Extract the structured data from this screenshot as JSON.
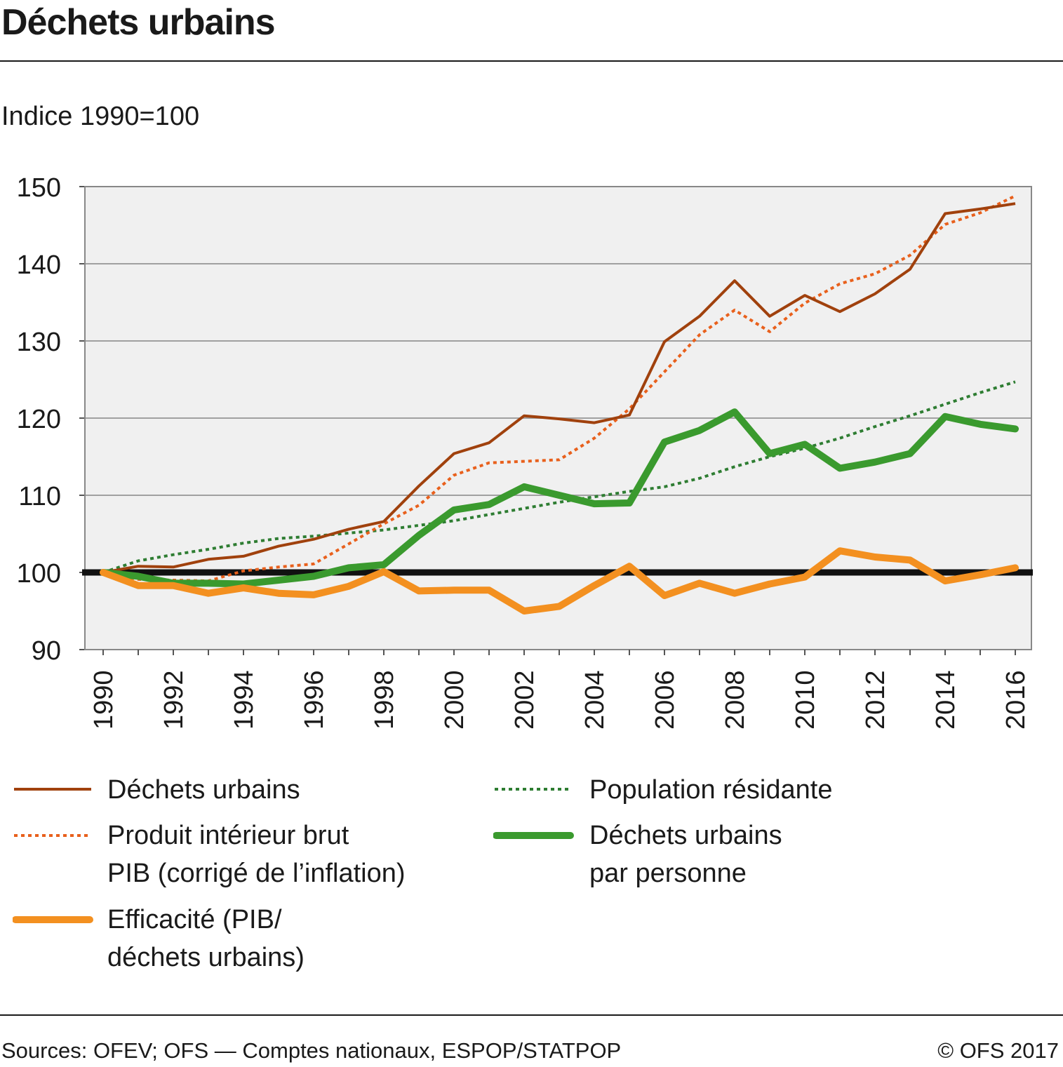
{
  "title": "Déchets urbains",
  "unit_label": "Indice 1990=100",
  "source": "Sources: OFEV; OFS — Comptes nationaux, ESPOP/STATPOP",
  "copyright": "© OFS 2017",
  "colors": {
    "dechets": "#a0410d",
    "pib": "#e8601c",
    "efficacite": "#f39020",
    "population": "#2e7d32",
    "par_personne": "#3a9a2e",
    "baseline": "#111111",
    "plot_bg": "#f0f0f0",
    "grid": "#a0a0a0"
  },
  "chart_data": {
    "type": "line",
    "ylim": [
      90,
      150
    ],
    "yticks": [
      90,
      100,
      110,
      120,
      130,
      140,
      150
    ],
    "xlim": [
      1990,
      2016
    ],
    "xticks": [
      1990,
      1992,
      1994,
      1996,
      1998,
      2000,
      2002,
      2004,
      2006,
      2008,
      2010,
      2012,
      2014,
      2016
    ],
    "grid": true,
    "legend_position": "bottom",
    "baseline": 100,
    "x": [
      1990,
      1991,
      1992,
      1993,
      1994,
      1995,
      1996,
      1997,
      1998,
      1999,
      2000,
      2001,
      2002,
      2003,
      2004,
      2005,
      2006,
      2007,
      2008,
      2009,
      2010,
      2011,
      2012,
      2013,
      2014,
      2015,
      2016
    ],
    "series": [
      {
        "id": "dechets",
        "name": "Déchets urbains",
        "style": "solid-thin",
        "values": [
          100,
          100.8,
          100.7,
          101.7,
          102.1,
          103.4,
          104.3,
          105.6,
          106.6,
          111.2,
          115.4,
          116.8,
          120.3,
          119.9,
          119.4,
          120.4,
          129.9,
          133.2,
          137.8,
          133.2,
          135.9,
          133.8,
          136.1,
          139.3,
          146.5,
          147.1,
          147.8
        ]
      },
      {
        "id": "pib",
        "name": "Produit intérieur brut PIB (corrigé de l’inflation)",
        "style": "dotted",
        "values": [
          100,
          99.1,
          99.0,
          98.9,
          100.2,
          100.7,
          101.1,
          103.7,
          106.3,
          108.7,
          112.6,
          114.2,
          114.4,
          114.6,
          117.4,
          121.2,
          126.0,
          130.8,
          134.0,
          131.2,
          134.9,
          137.4,
          138.7,
          141.1,
          145.1,
          146.6,
          148.8
        ]
      },
      {
        "id": "efficacite",
        "name": "Efficacité (PIB/ déchets urbains)",
        "style": "solid-thick",
        "values": [
          100,
          98.3,
          98.3,
          97.3,
          98.0,
          97.3,
          97.1,
          98.2,
          100.1,
          97.6,
          97.7,
          97.7,
          95.0,
          95.6,
          98.3,
          100.8,
          97.0,
          98.6,
          97.3,
          98.5,
          99.4,
          102.8,
          102.0,
          101.6,
          98.9,
          99.7,
          100.6
        ]
      },
      {
        "id": "population",
        "name": "Population résidante",
        "style": "dotted",
        "values": [
          100,
          101.5,
          102.3,
          103.0,
          103.8,
          104.4,
          104.7,
          105.1,
          105.5,
          106.1,
          106.7,
          107.5,
          108.3,
          109.1,
          109.8,
          110.5,
          111.1,
          112.2,
          113.7,
          115.0,
          116.1,
          117.4,
          118.9,
          120.3,
          121.8,
          123.3,
          124.7
        ]
      },
      {
        "id": "par_personne",
        "name": "Déchets urbains par personne",
        "style": "solid-thick",
        "values": [
          100,
          99.5,
          98.6,
          98.6,
          98.5,
          99.0,
          99.5,
          100.6,
          101.0,
          104.8,
          108.1,
          108.8,
          111.1,
          110.0,
          108.9,
          109.0,
          116.9,
          118.4,
          120.8,
          115.4,
          116.6,
          113.5,
          114.3,
          115.4,
          120.2,
          119.2,
          118.6
        ]
      }
    ]
  },
  "legend": {
    "dechets": "Déchets urbains",
    "pib_line1": "Produit intérieur brut",
    "pib_line2": "PIB (corrigé de l’inflation)",
    "efficacite_line1": "Efficacité (PIB/",
    "efficacite_line2": "déchets urbains)",
    "population": "Population résidante",
    "par_personne_line1": "Déchets urbains",
    "par_personne_line2": "par personne"
  }
}
